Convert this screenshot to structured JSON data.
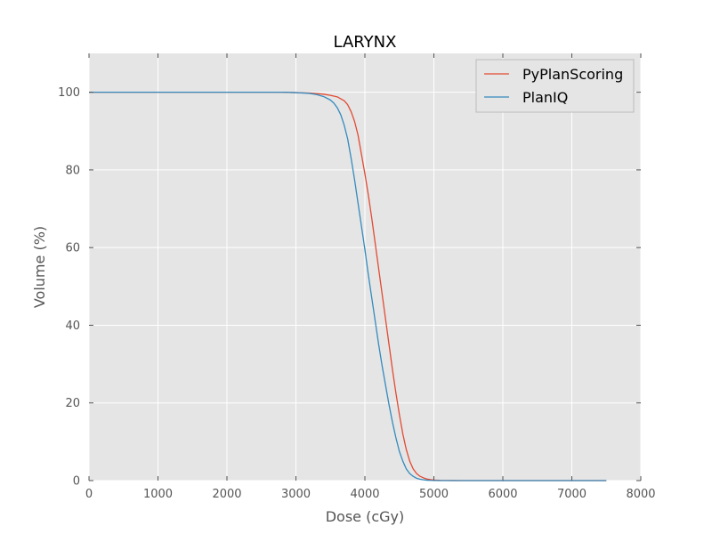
{
  "chart_data": {
    "type": "line",
    "title": "LARYNX",
    "xlabel": "Dose (cGy)",
    "ylabel": "Volume (%)",
    "xlim": [
      0,
      8000
    ],
    "ylim": [
      0,
      110
    ],
    "xticks": [
      0,
      1000,
      2000,
      3000,
      4000,
      5000,
      6000,
      7000,
      8000
    ],
    "yticks": [
      0,
      20,
      40,
      60,
      80,
      100
    ],
    "grid": true,
    "legend_position": "top-right",
    "colors": {
      "plot_background": "#e5e5e5",
      "grid": "#ffffff",
      "text": "#555555",
      "title": "#000000"
    },
    "series": [
      {
        "name": "PyPlanScoring",
        "color": "#e24a33",
        "x": [
          0,
          1000,
          2000,
          2800,
          3000,
          3200,
          3400,
          3500,
          3600,
          3700,
          3750,
          3800,
          3850,
          3900,
          3950,
          4000,
          4050,
          4100,
          4150,
          4200,
          4250,
          4300,
          4350,
          4400,
          4450,
          4500,
          4550,
          4600,
          4650,
          4700,
          4750,
          4800,
          4850,
          4900,
          4950,
          5000,
          5100,
          5200,
          5400,
          6000,
          7000,
          7500
        ],
        "values": [
          100,
          100,
          100,
          100,
          99.9,
          99.8,
          99.5,
          99.2,
          98.8,
          97.8,
          96.8,
          95,
          92.5,
          89,
          84,
          79,
          73.5,
          67.5,
          61,
          54.5,
          48,
          41.5,
          35,
          28.5,
          22.5,
          17,
          12,
          8,
          5,
          3,
          1.8,
          1.1,
          0.7,
          0.4,
          0.25,
          0.15,
          0.05,
          0.02,
          0,
          0,
          0,
          0
        ]
      },
      {
        "name": "PlanIQ",
        "color": "#348abd",
        "x": [
          0,
          1000,
          2000,
          2800,
          3000,
          3200,
          3300,
          3400,
          3500,
          3550,
          3600,
          3650,
          3700,
          3750,
          3800,
          3850,
          3900,
          3950,
          4000,
          4050,
          4100,
          4150,
          4200,
          4250,
          4300,
          4350,
          4400,
          4450,
          4500,
          4550,
          4600,
          4650,
          4700,
          4750,
          4800,
          4850,
          4900,
          4950,
          5000,
          5100,
          5200,
          5400,
          6000,
          7000,
          7500
        ],
        "values": [
          100,
          100,
          100,
          100,
          99.9,
          99.7,
          99.4,
          98.9,
          98,
          97.2,
          96,
          94.2,
          91.5,
          88,
          83,
          77.5,
          71.5,
          65.5,
          59.5,
          53,
          47,
          41,
          35,
          29.5,
          24.5,
          19.5,
          15,
          11,
          7.5,
          5,
          3,
          1.8,
          1.1,
          0.6,
          0.35,
          0.2,
          0.1,
          0.05,
          0.02,
          0,
          0,
          0,
          0,
          0,
          0
        ]
      }
    ]
  }
}
